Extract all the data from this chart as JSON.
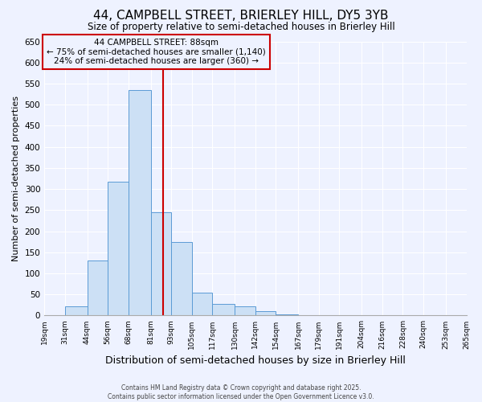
{
  "title": "44, CAMPBELL STREET, BRIERLEY HILL, DY5 3YB",
  "subtitle": "Size of property relative to semi-detached houses in Brierley Hill",
  "xlabel": "Distribution of semi-detached houses by size in Brierley Hill",
  "ylabel": "Number of semi-detached properties",
  "bin_edges": [
    19,
    31,
    44,
    56,
    68,
    81,
    93,
    105,
    117,
    130,
    142,
    154,
    167,
    179,
    191,
    204,
    216,
    228,
    240,
    253,
    265
  ],
  "bin_labels": [
    "19sqm",
    "31sqm",
    "44sqm",
    "56sqm",
    "68sqm",
    "81sqm",
    "93sqm",
    "105sqm",
    "117sqm",
    "130sqm",
    "142sqm",
    "154sqm",
    "167sqm",
    "179sqm",
    "191sqm",
    "204sqm",
    "216sqm",
    "228sqm",
    "240sqm",
    "253sqm",
    "265sqm"
  ],
  "counts": [
    0,
    22,
    130,
    318,
    535,
    245,
    175,
    55,
    28,
    22,
    10,
    3,
    0,
    0,
    0,
    0,
    0,
    0,
    0,
    0
  ],
  "bar_color": "#cce0f5",
  "bar_edgecolor": "#5b9bd5",
  "vline_x": 88,
  "vline_color": "#cc0000",
  "annotation_title": "44 CAMPBELL STREET: 88sqm",
  "annotation_line1": "← 75% of semi-detached houses are smaller (1,140)",
  "annotation_line2": "24% of semi-detached houses are larger (360) →",
  "annotation_box_edgecolor": "#cc0000",
  "ylim": [
    0,
    650
  ],
  "yticks": [
    0,
    50,
    100,
    150,
    200,
    250,
    300,
    350,
    400,
    450,
    500,
    550,
    600,
    650
  ],
  "bg_color": "#eef2ff",
  "grid_color": "#ffffff",
  "footer1": "Contains HM Land Registry data © Crown copyright and database right 2025.",
  "footer2": "Contains public sector information licensed under the Open Government Licence v3.0."
}
